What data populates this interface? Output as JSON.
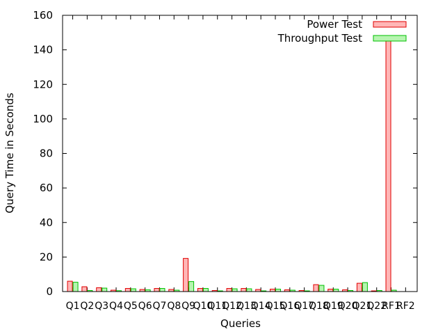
{
  "chart_data": {
    "type": "bar",
    "title": "",
    "xlabel": "Queries",
    "ylabel": "Query Time in Seconds",
    "ylim": [
      0,
      160
    ],
    "yticks": [
      0,
      20,
      40,
      60,
      80,
      100,
      120,
      140,
      160
    ],
    "grid": false,
    "legend_position": "top-right",
    "categories": [
      "Q1",
      "Q2",
      "Q3",
      "Q4",
      "Q5",
      "Q6",
      "Q7",
      "Q8",
      "Q9",
      "Q10",
      "Q11",
      "Q12",
      "Q13",
      "Q14",
      "Q15",
      "Q16",
      "Q17",
      "Q18",
      "Q19",
      "Q20",
      "Q21",
      "Q22",
      "RF1",
      "RF2"
    ],
    "series": [
      {
        "name": "Power Test",
        "fill": "#ffb6b6",
        "stroke": "#e00000",
        "values": [
          6.0,
          2.8,
          2.2,
          0.8,
          1.8,
          1.2,
          1.8,
          1.2,
          19.2,
          1.8,
          0.6,
          1.8,
          1.8,
          1.2,
          1.4,
          1.0,
          0.6,
          4.0,
          1.4,
          1.0,
          4.8,
          0.4,
          145.5,
          0.0
        ]
      },
      {
        "name": "Throughput Test",
        "fill": "#b6f5b0",
        "stroke": "#00c000",
        "values": [
          5.4,
          0.6,
          2.0,
          0.5,
          1.6,
          1.0,
          1.8,
          0.8,
          5.8,
          1.8,
          0.4,
          1.6,
          1.6,
          0.4,
          1.4,
          0.8,
          0.4,
          3.6,
          1.4,
          0.6,
          5.2,
          0.6,
          0.8,
          0.0
        ]
      }
    ]
  }
}
